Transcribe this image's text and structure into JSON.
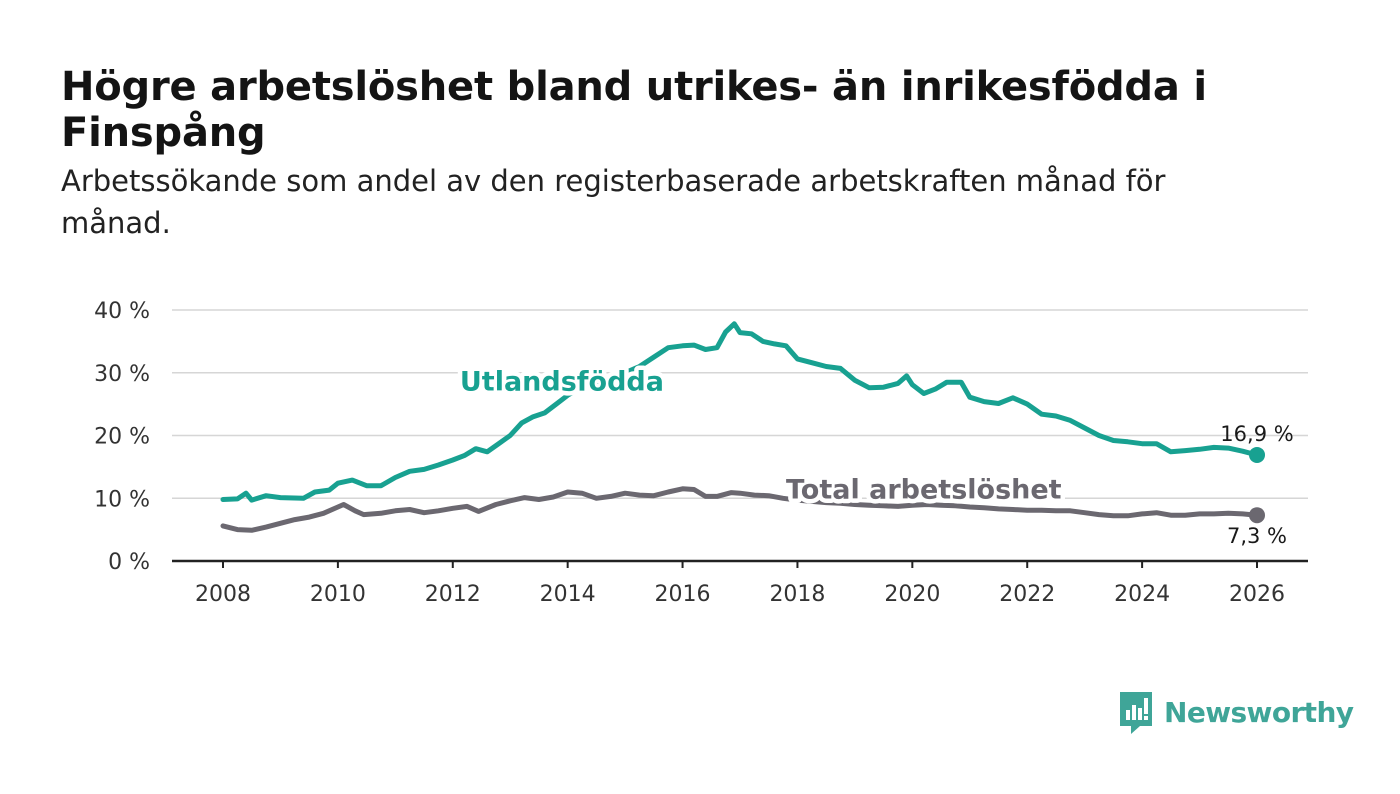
{
  "title": "Högre arbetslöshet bland utrikes- än inrikesfödda i Finspång",
  "subtitle": "Arbetssökande som andel av den registerbaserade arbetskraften månad för månad.",
  "brand": {
    "name": "Newsworthy",
    "icon": "newsworthy-logo-icon",
    "color": "#3fa598"
  },
  "chart_data": {
    "type": "line",
    "title": "Högre arbetslöshet bland utrikes- än inrikesfödda i Finspång",
    "xlabel": "",
    "ylabel": "",
    "xlim": [
      2007.7,
      2026.9
    ],
    "ylim": [
      0,
      40
    ],
    "grid": true,
    "x_ticks": [
      2008,
      2010,
      2012,
      2014,
      2016,
      2018,
      2020,
      2022,
      2024,
      2026
    ],
    "x_tick_labels": [
      "2008",
      "2010",
      "2012",
      "2014",
      "2016",
      "2018",
      "2020",
      "2022",
      "2024",
      "2026"
    ],
    "y_ticks": [
      0,
      10,
      20,
      30,
      40
    ],
    "y_tick_labels": [
      "0 %",
      "10 %",
      "20 %",
      "30 %",
      "40 %"
    ],
    "series": [
      {
        "name": "Utlandsfödda",
        "color": "#18a191",
        "end_label": "16,9 %",
        "points": [
          [
            2008.0,
            9.8
          ],
          [
            2008.25,
            9.9
          ],
          [
            2008.4,
            10.8
          ],
          [
            2008.5,
            9.7
          ],
          [
            2008.75,
            10.4
          ],
          [
            2009.0,
            10.1
          ],
          [
            2009.4,
            10.0
          ],
          [
            2009.6,
            11.0
          ],
          [
            2009.85,
            11.3
          ],
          [
            2010.0,
            12.4
          ],
          [
            2010.25,
            12.9
          ],
          [
            2010.5,
            12.0
          ],
          [
            2010.75,
            12.0
          ],
          [
            2011.0,
            13.3
          ],
          [
            2011.25,
            14.3
          ],
          [
            2011.5,
            14.6
          ],
          [
            2011.75,
            15.3
          ],
          [
            2012.0,
            16.1
          ],
          [
            2012.2,
            16.8
          ],
          [
            2012.4,
            17.9
          ],
          [
            2012.6,
            17.4
          ],
          [
            2012.8,
            18.7
          ],
          [
            2013.0,
            20.0
          ],
          [
            2013.2,
            22.0
          ],
          [
            2013.4,
            23.0
          ],
          [
            2013.6,
            23.6
          ],
          [
            2013.8,
            25.0
          ],
          [
            2014.0,
            26.4
          ],
          [
            2014.25,
            27.8
          ],
          [
            2014.5,
            28.6
          ],
          [
            2014.75,
            29.2
          ],
          [
            2015.0,
            30.0
          ],
          [
            2015.25,
            31.0
          ],
          [
            2015.5,
            32.5
          ],
          [
            2015.75,
            34.0
          ],
          [
            2016.0,
            34.3
          ],
          [
            2016.2,
            34.4
          ],
          [
            2016.4,
            33.7
          ],
          [
            2016.6,
            34.0
          ],
          [
            2016.75,
            36.5
          ],
          [
            2016.9,
            37.8
          ],
          [
            2017.0,
            36.4
          ],
          [
            2017.2,
            36.2
          ],
          [
            2017.4,
            35.0
          ],
          [
            2017.6,
            34.6
          ],
          [
            2017.8,
            34.3
          ],
          [
            2018.0,
            32.2
          ],
          [
            2018.25,
            31.6
          ],
          [
            2018.5,
            31.0
          ],
          [
            2018.75,
            30.7
          ],
          [
            2019.0,
            28.8
          ],
          [
            2019.25,
            27.6
          ],
          [
            2019.5,
            27.7
          ],
          [
            2019.75,
            28.3
          ],
          [
            2019.9,
            29.5
          ],
          [
            2020.0,
            28.1
          ],
          [
            2020.2,
            26.7
          ],
          [
            2020.4,
            27.4
          ],
          [
            2020.6,
            28.5
          ],
          [
            2020.85,
            28.5
          ],
          [
            2021.0,
            26.1
          ],
          [
            2021.25,
            25.4
          ],
          [
            2021.5,
            25.1
          ],
          [
            2021.75,
            26.0
          ],
          [
            2022.0,
            25.0
          ],
          [
            2022.25,
            23.4
          ],
          [
            2022.5,
            23.1
          ],
          [
            2022.75,
            22.4
          ],
          [
            2023.0,
            21.2
          ],
          [
            2023.25,
            20.0
          ],
          [
            2023.5,
            19.2
          ],
          [
            2023.75,
            19.0
          ],
          [
            2024.0,
            18.7
          ],
          [
            2024.25,
            18.7
          ],
          [
            2024.5,
            17.4
          ],
          [
            2024.75,
            17.6
          ],
          [
            2025.0,
            17.8
          ],
          [
            2025.25,
            18.1
          ],
          [
            2025.5,
            18.0
          ],
          [
            2025.75,
            17.5
          ],
          [
            2026.0,
            16.9
          ]
        ]
      },
      {
        "name": "Total arbetslöshet",
        "color": "#6b6870",
        "end_label": "7,3 %",
        "points": [
          [
            2008.0,
            5.6
          ],
          [
            2008.25,
            5.0
          ],
          [
            2008.5,
            4.9
          ],
          [
            2008.75,
            5.4
          ],
          [
            2009.0,
            6.0
          ],
          [
            2009.25,
            6.6
          ],
          [
            2009.5,
            7.0
          ],
          [
            2009.75,
            7.6
          ],
          [
            2010.0,
            8.6
          ],
          [
            2010.1,
            9.0
          ],
          [
            2010.3,
            8.0
          ],
          [
            2010.45,
            7.4
          ],
          [
            2010.75,
            7.6
          ],
          [
            2011.0,
            8.0
          ],
          [
            2011.25,
            8.2
          ],
          [
            2011.5,
            7.7
          ],
          [
            2011.75,
            8.0
          ],
          [
            2012.0,
            8.4
          ],
          [
            2012.25,
            8.7
          ],
          [
            2012.45,
            7.9
          ],
          [
            2012.75,
            9.0
          ],
          [
            2013.0,
            9.6
          ],
          [
            2013.25,
            10.1
          ],
          [
            2013.5,
            9.8
          ],
          [
            2013.75,
            10.2
          ],
          [
            2014.0,
            11.0
          ],
          [
            2014.25,
            10.8
          ],
          [
            2014.5,
            10.0
          ],
          [
            2014.75,
            10.3
          ],
          [
            2015.0,
            10.8
          ],
          [
            2015.25,
            10.5
          ],
          [
            2015.5,
            10.4
          ],
          [
            2015.75,
            11.0
          ],
          [
            2016.0,
            11.5
          ],
          [
            2016.2,
            11.4
          ],
          [
            2016.4,
            10.3
          ],
          [
            2016.6,
            10.3
          ],
          [
            2016.85,
            10.9
          ],
          [
            2017.0,
            10.8
          ],
          [
            2017.25,
            10.5
          ],
          [
            2017.5,
            10.4
          ],
          [
            2017.75,
            10.0
          ],
          [
            2018.0,
            9.7
          ],
          [
            2018.25,
            9.5
          ],
          [
            2018.5,
            9.3
          ],
          [
            2018.75,
            9.2
          ],
          [
            2019.0,
            9.0
          ],
          [
            2019.25,
            8.9
          ],
          [
            2019.5,
            8.8
          ],
          [
            2019.75,
            8.7
          ],
          [
            2020.0,
            8.9
          ],
          [
            2020.25,
            9.0
          ],
          [
            2020.5,
            8.9
          ],
          [
            2020.75,
            8.8
          ],
          [
            2021.0,
            8.6
          ],
          [
            2021.25,
            8.5
          ],
          [
            2021.5,
            8.3
          ],
          [
            2021.75,
            8.2
          ],
          [
            2022.0,
            8.1
          ],
          [
            2022.25,
            8.1
          ],
          [
            2022.5,
            8.0
          ],
          [
            2022.75,
            8.0
          ],
          [
            2023.0,
            7.7
          ],
          [
            2023.25,
            7.4
          ],
          [
            2023.5,
            7.2
          ],
          [
            2023.75,
            7.2
          ],
          [
            2024.0,
            7.5
          ],
          [
            2024.25,
            7.7
          ],
          [
            2024.5,
            7.3
          ],
          [
            2024.75,
            7.3
          ],
          [
            2025.0,
            7.5
          ],
          [
            2025.25,
            7.5
          ],
          [
            2025.5,
            7.6
          ],
          [
            2025.75,
            7.5
          ],
          [
            2026.0,
            7.3
          ]
        ]
      }
    ],
    "annotations": [
      {
        "text": "Utlandsfödda",
        "series": "Utlandsfödda",
        "color": "#18a191",
        "anchor_x": 2013.9,
        "anchor_y": 27.2,
        "align": "middle"
      },
      {
        "text": "Total arbetslöshet",
        "series": "Total arbetslöshet",
        "color": "#6b6870",
        "anchor_x": 2017.8,
        "anchor_y": 10.0,
        "align": "start"
      }
    ]
  }
}
